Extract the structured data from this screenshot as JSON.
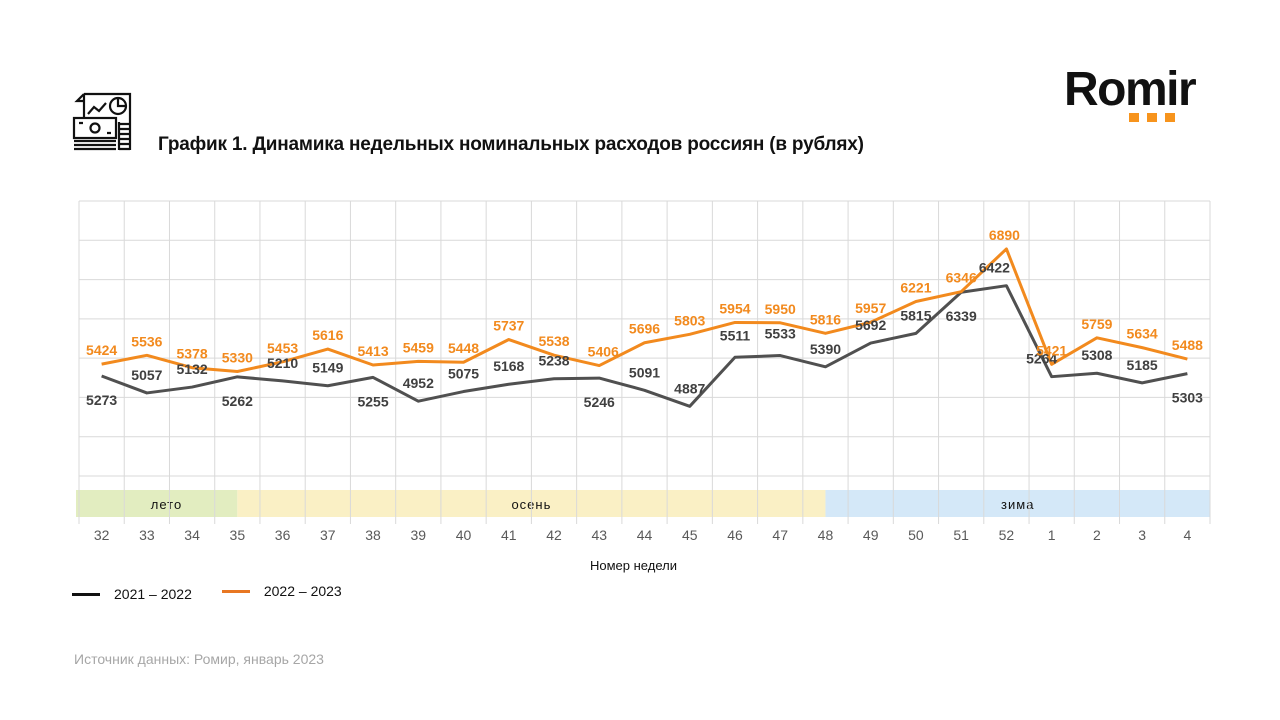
{
  "header": {
    "title": "График 1. Динамика недельных номинальных расходов россиян (в рублях)",
    "logo_text": "Romir",
    "icon": "finance-report-icon"
  },
  "colors": {
    "series_2021": "#505050",
    "series_2022": "#f28a1e",
    "label_2021": "#404040",
    "label_2022": "#f28a1e",
    "grid": "#d9d9d9",
    "summer": "#e2edc0",
    "autumn": "#faf0c5",
    "winter": "#d4e8f8",
    "logo_accent": "#f7941d"
  },
  "legend": [
    {
      "label": "2021 – 2022",
      "color": "#111111"
    },
    {
      "label": "2022 – 2023",
      "color": "#e87722"
    }
  ],
  "source": "Источник данных: Ромир, январь 2023",
  "chart_data": {
    "type": "line",
    "title": "График 1. Динамика недельных номинальных расходов россиян (в рублях)",
    "xlabel": "Номер недели",
    "ylabel": "",
    "ylim": [
      4000,
      7500
    ],
    "grid": true,
    "legend_position": "bottom-left",
    "categories": [
      "32",
      "33",
      "34",
      "35",
      "36",
      "37",
      "38",
      "39",
      "40",
      "41",
      "42",
      "43",
      "44",
      "45",
      "46",
      "47",
      "48",
      "49",
      "50",
      "51",
      "52",
      "1",
      "2",
      "3",
      "4"
    ],
    "series": [
      {
        "name": "2021 – 2022",
        "values": [
          5273,
          5057,
          5132,
          5262,
          5210,
          5149,
          5255,
          4952,
          5075,
          5168,
          5238,
          5246,
          5091,
          4887,
          5511,
          5533,
          5390,
          5692,
          5815,
          6339,
          6422,
          5264,
          5308,
          5185,
          5303
        ]
      },
      {
        "name": "2022 – 2023",
        "values": [
          5424,
          5536,
          5378,
          5330,
          5453,
          5616,
          5413,
          5459,
          5448,
          5737,
          5538,
          5406,
          5696,
          5803,
          5954,
          5950,
          5816,
          5957,
          6221,
          6346,
          6890,
          5421,
          5759,
          5634,
          5488
        ]
      }
    ],
    "seasons": [
      {
        "label": "лето",
        "from": "32",
        "to": "35"
      },
      {
        "label": "осень",
        "from": "35",
        "to": "48"
      },
      {
        "label": "зима",
        "from": "48",
        "to": "4"
      }
    ]
  }
}
